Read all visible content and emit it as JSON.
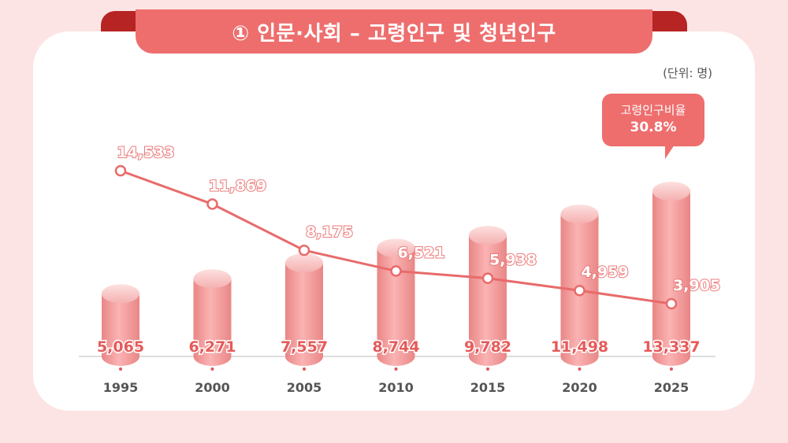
{
  "title": "① 인문·사회 – 고령인구 및 청년인구",
  "unit": "(단위: 명)",
  "callout": {
    "label": "고령인구비율",
    "value": "30.8%"
  },
  "colors": {
    "accent": "#ee6e6e",
    "bar": "#f29393",
    "line": "#e86b6b",
    "bar_label": "#e55b5b",
    "dark_ribbon": "#b72424"
  },
  "chart_data": {
    "type": "bar",
    "categories": [
      "1995",
      "2000",
      "2005",
      "2010",
      "2015",
      "2020",
      "2025"
    ],
    "series": [
      {
        "type": "bar",
        "values": [
          5065,
          6271,
          7557,
          8744,
          9782,
          11498,
          13337
        ],
        "labels": [
          "5,065",
          "6,271",
          "7,557",
          "8,744",
          "9,782",
          "11,498",
          "13,337"
        ]
      },
      {
        "type": "line",
        "values": [
          14533,
          11869,
          8175,
          6521,
          5938,
          4959,
          3905
        ],
        "labels": [
          "14,533",
          "11,869",
          "8,175",
          "6,521",
          "5,938",
          "4,959",
          "3,905"
        ]
      }
    ],
    "grid": false,
    "legend": "none"
  }
}
